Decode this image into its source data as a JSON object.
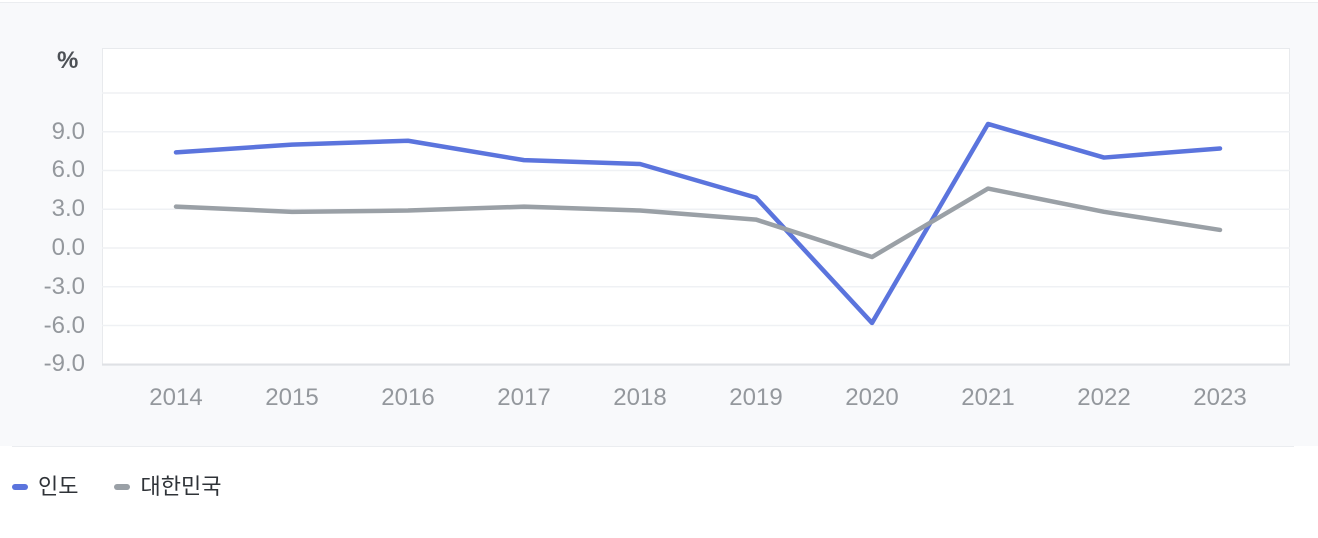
{
  "theme": {
    "card_bg": "#f8f9fb",
    "plot_bg": "#ffffff",
    "plot_border": "#e8eaed",
    "grid_line": "#eff1f4",
    "axis_line": "#dfe1e5",
    "divider": "#ebedf0",
    "tick_text": "#94989d",
    "unit_text": "#4d5156",
    "legend_text": "#2f3338",
    "series_blue": "#5b74dd",
    "series_gray": "#9aa0a6"
  },
  "chart_data": {
    "type": "line",
    "title": "",
    "unit_label": "%",
    "x": [
      "2014",
      "2015",
      "2016",
      "2017",
      "2018",
      "2019",
      "2020",
      "2021",
      "2022",
      "2023"
    ],
    "series": [
      {
        "name": "인도",
        "color": "#5b74dd",
        "values": [
          7.4,
          8.0,
          8.3,
          6.8,
          6.5,
          3.9,
          -5.8,
          9.6,
          7.0,
          7.7
        ]
      },
      {
        "name": "대한민국",
        "color": "#9aa0a6",
        "values": [
          3.2,
          2.8,
          2.9,
          3.2,
          2.9,
          2.2,
          -0.7,
          4.6,
          2.8,
          1.4
        ]
      }
    ],
    "ytick_labels": [
      "9.0",
      "6.0",
      "3.0",
      "0.0",
      "-3.0",
      "-6.0",
      "-9.0"
    ],
    "ytick_values": [
      9,
      6,
      3,
      0,
      -3,
      -6,
      -9
    ],
    "gridline_values": [
      12,
      9,
      6,
      3,
      0,
      -3,
      -6,
      -9
    ],
    "ylim": [
      -9.2,
      15.5
    ],
    "grid": true,
    "legend_position": "bottom-left"
  }
}
